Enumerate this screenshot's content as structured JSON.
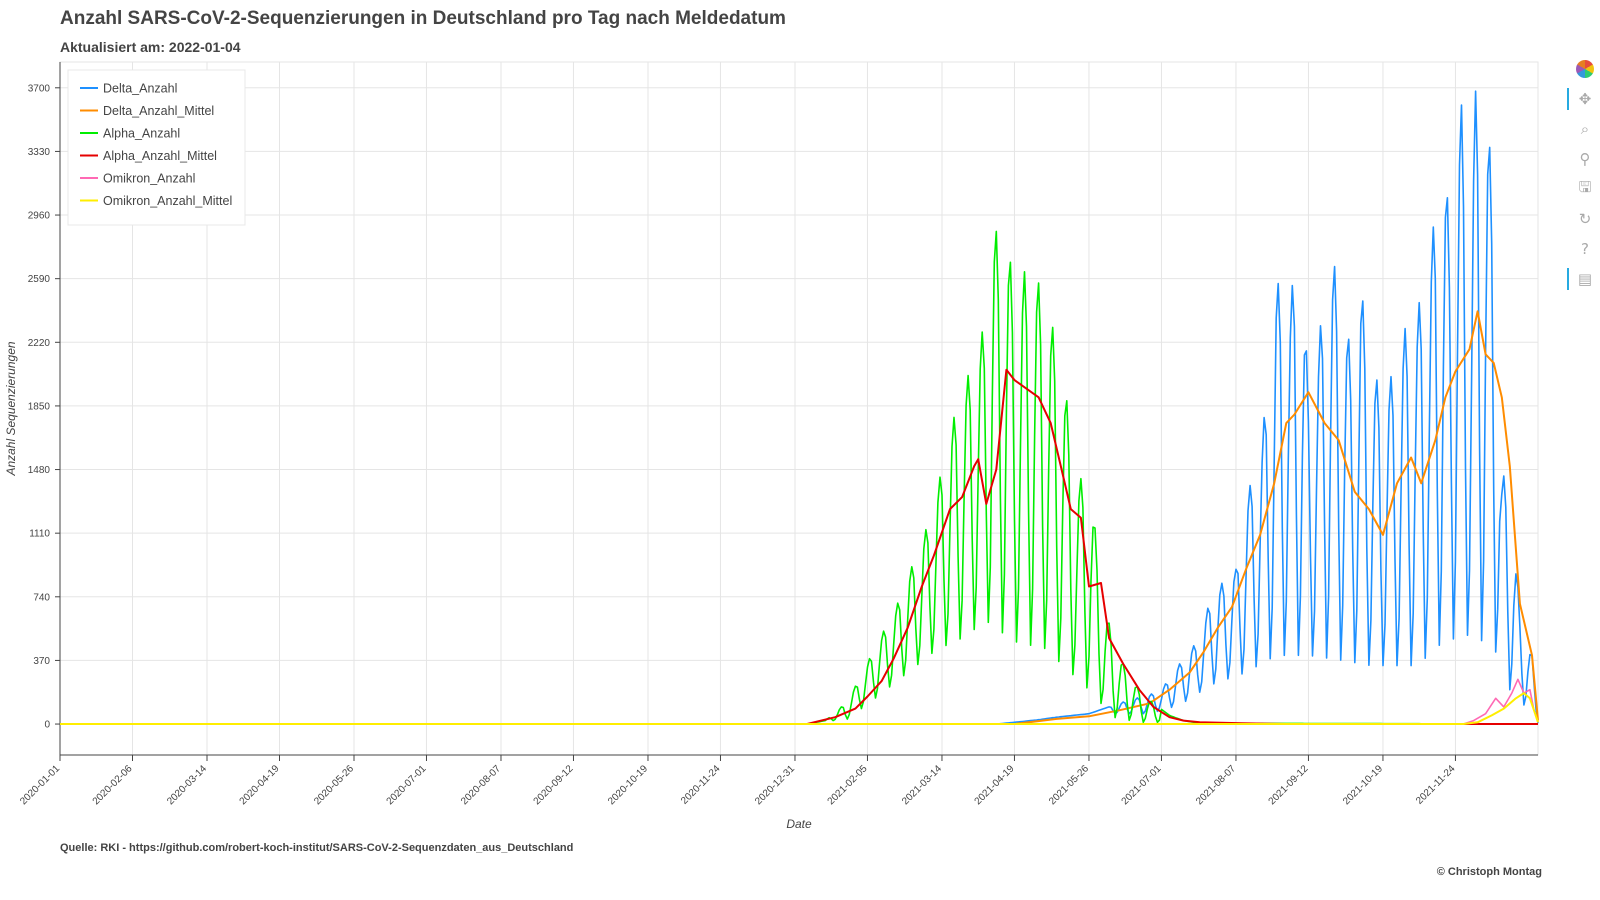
{
  "header": {
    "title": "Anzahl SARS-CoV-2-Sequenzierungen in Deutschland pro Tag nach Meldedatum",
    "subtitle": "Aktualisiert am: 2022-01-04"
  },
  "footer": {
    "source": "Quelle: RKI - https://github.com/robert-koch-institut/SARS-CoV-2-Sequenzdaten_aus_Deutschland",
    "credit": "© Christoph Montag"
  },
  "toolbar": [
    {
      "name": "bokeh-logo-icon",
      "glyph": ""
    },
    {
      "name": "pan-tool-icon",
      "glyph": "✥",
      "active": true
    },
    {
      "name": "box-zoom-tool-icon",
      "glyph": "⌕"
    },
    {
      "name": "wheel-zoom-tool-icon",
      "glyph": "⚲"
    },
    {
      "name": "save-tool-icon",
      "glyph": "🖫"
    },
    {
      "name": "reset-tool-icon",
      "glyph": "↻"
    },
    {
      "name": "help-tool-icon",
      "glyph": "?"
    },
    {
      "name": "hover-tool-icon",
      "glyph": "▤",
      "active": true
    }
  ],
  "chart_data": {
    "type": "line",
    "xlabel": "Date",
    "ylabel": "Anzahl Sequenzierungen",
    "x_range": [
      "2020-01-01",
      "2022-01-04"
    ],
    "ylim": [
      -180,
      3850
    ],
    "yticks": [
      0,
      370,
      740,
      1110,
      1480,
      1850,
      2220,
      2590,
      2960,
      3330,
      3700
    ],
    "xticks": [
      "2020-01-01",
      "2020-02-06",
      "2020-03-14",
      "2020-04-19",
      "2020-05-26",
      "2020-07-01",
      "2020-08-07",
      "2020-09-12",
      "2020-10-19",
      "2020-11-24",
      "2020-12-31",
      "2021-02-05",
      "2021-03-14",
      "2021-04-19",
      "2021-05-26",
      "2021-07-01",
      "2021-08-07",
      "2021-09-12",
      "2021-10-19",
      "2021-11-24"
    ],
    "grid": true,
    "legend_position": "top-left",
    "series": [
      {
        "name": "Delta_Anzahl",
        "color": "#1e90ff",
        "width": 1.6,
        "points": [
          [
            "2020-01-01",
            0
          ],
          [
            "2021-04-10",
            0
          ],
          [
            "2021-04-19",
            10
          ],
          [
            "2021-05-01",
            25
          ],
          [
            "2021-05-10",
            40
          ],
          [
            "2021-05-26",
            60
          ],
          [
            "2021-06-05",
            100
          ],
          [
            "2021-06-15",
            140
          ],
          [
            "2021-06-25",
            170
          ],
          [
            "2021-07-01",
            200
          ],
          [
            "2021-07-10",
            350
          ],
          [
            "2021-07-20",
            500
          ],
          [
            "2021-07-26",
            760
          ],
          [
            "2021-08-07",
            900
          ],
          [
            "2021-08-12",
            1300
          ],
          [
            "2021-08-20",
            1650
          ],
          [
            "2021-08-27",
            2580
          ],
          [
            "2021-09-03",
            2450
          ],
          [
            "2021-09-07",
            2850
          ],
          [
            "2021-09-12",
            2000
          ],
          [
            "2021-09-17",
            2200
          ],
          [
            "2021-09-22",
            2780
          ],
          [
            "2021-09-29",
            2500
          ],
          [
            "2021-10-03",
            2150
          ],
          [
            "2021-10-08",
            2550
          ],
          [
            "2021-10-13",
            2100
          ],
          [
            "2021-10-19",
            1900
          ],
          [
            "2021-10-24",
            2050
          ],
          [
            "2021-10-30",
            2300
          ],
          [
            "2021-11-05",
            2400
          ],
          [
            "2021-11-10",
            2650
          ],
          [
            "2021-11-15",
            3050
          ],
          [
            "2021-11-18",
            3380
          ],
          [
            "2021-11-21",
            2900
          ],
          [
            "2021-11-24",
            3470
          ],
          [
            "2021-11-27",
            3600
          ],
          [
            "2021-12-01",
            3000
          ],
          [
            "2021-12-04",
            3680
          ],
          [
            "2021-12-07",
            3650
          ],
          [
            "2021-12-10",
            3500
          ],
          [
            "2021-12-13",
            3060
          ],
          [
            "2021-12-17",
            1450
          ],
          [
            "2021-12-21",
            1420
          ],
          [
            "2021-12-26",
            640
          ],
          [
            "2022-01-01",
            400
          ],
          [
            "2022-01-04",
            5
          ]
        ],
        "troughs": [
          [
            "2021-06-25",
            60
          ],
          [
            "2021-07-10",
            110
          ],
          [
            "2021-07-26",
            230
          ],
          [
            "2021-08-12",
            300
          ],
          [
            "2021-08-27",
            400
          ],
          [
            "2021-09-12",
            400
          ],
          [
            "2021-09-29",
            370
          ],
          [
            "2021-10-13",
            340
          ],
          [
            "2021-10-24",
            340
          ],
          [
            "2021-11-05",
            340
          ],
          [
            "2021-11-18",
            480
          ],
          [
            "2021-12-01",
            520
          ],
          [
            "2021-12-13",
            450
          ],
          [
            "2021-12-21",
            200
          ],
          [
            "2022-01-01",
            60
          ]
        ]
      },
      {
        "name": "Delta_Anzahl_Mittel",
        "color": "#ff8c00",
        "width": 2,
        "points": [
          [
            "2020-01-01",
            0
          ],
          [
            "2021-04-19",
            0
          ],
          [
            "2021-05-10",
            30
          ],
          [
            "2021-05-26",
            45
          ],
          [
            "2021-06-10",
            80
          ],
          [
            "2021-06-25",
            120
          ],
          [
            "2021-07-05",
            200
          ],
          [
            "2021-07-15",
            300
          ],
          [
            "2021-07-22",
            420
          ],
          [
            "2021-07-29",
            560
          ],
          [
            "2021-08-05",
            680
          ],
          [
            "2021-08-12",
            900
          ],
          [
            "2021-08-19",
            1100
          ],
          [
            "2021-08-26",
            1400
          ],
          [
            "2021-09-01",
            1750
          ],
          [
            "2021-09-05",
            1800
          ],
          [
            "2021-09-12",
            1930
          ],
          [
            "2021-09-20",
            1750
          ],
          [
            "2021-09-27",
            1650
          ],
          [
            "2021-10-05",
            1350
          ],
          [
            "2021-10-12",
            1250
          ],
          [
            "2021-10-19",
            1100
          ],
          [
            "2021-10-26",
            1400
          ],
          [
            "2021-11-02",
            1550
          ],
          [
            "2021-11-07",
            1400
          ],
          [
            "2021-11-14",
            1650
          ],
          [
            "2021-11-19",
            1900
          ],
          [
            "2021-11-24",
            2050
          ],
          [
            "2021-12-01",
            2180
          ],
          [
            "2021-12-05",
            2400
          ],
          [
            "2021-12-09",
            2150
          ],
          [
            "2021-12-13",
            2100
          ],
          [
            "2021-12-17",
            1900
          ],
          [
            "2021-12-21",
            1500
          ],
          [
            "2021-12-26",
            700
          ],
          [
            "2022-01-01",
            400
          ],
          [
            "2022-01-04",
            20
          ]
        ]
      },
      {
        "name": "Alpha_Anzahl",
        "color": "#00ee00",
        "width": 1.6,
        "points": [
          [
            "2020-01-01",
            0
          ],
          [
            "2021-01-06",
            0
          ],
          [
            "2021-01-15",
            20
          ],
          [
            "2021-01-25",
            120
          ],
          [
            "2021-02-02",
            280
          ],
          [
            "2021-02-10",
            480
          ],
          [
            "2021-02-18",
            640
          ],
          [
            "2021-02-25",
            860
          ],
          [
            "2021-03-04",
            1050
          ],
          [
            "2021-03-11",
            1330
          ],
          [
            "2021-03-18",
            1700
          ],
          [
            "2021-03-24",
            1950
          ],
          [
            "2021-03-31",
            2130
          ],
          [
            "2021-04-05",
            2380
          ],
          [
            "2021-04-08",
            2980
          ],
          [
            "2021-04-12",
            2750
          ],
          [
            "2021-04-15",
            2870
          ],
          [
            "2021-04-19",
            2500
          ],
          [
            "2021-04-24",
            2630
          ],
          [
            "2021-04-29",
            2660
          ],
          [
            "2021-05-04",
            2420
          ],
          [
            "2021-05-10",
            2250
          ],
          [
            "2021-05-15",
            1880
          ],
          [
            "2021-05-20",
            1400
          ],
          [
            "2021-05-26",
            1480
          ],
          [
            "2021-06-01",
            800
          ],
          [
            "2021-06-07",
            480
          ],
          [
            "2021-06-14",
            300
          ],
          [
            "2021-06-20",
            200
          ],
          [
            "2021-06-27",
            120
          ],
          [
            "2021-07-05",
            50
          ],
          [
            "2021-07-12",
            20
          ],
          [
            "2021-07-20",
            5
          ],
          [
            "2022-01-04",
            0
          ]
        ],
        "troughs": [
          [
            "2021-01-25",
            20
          ],
          [
            "2021-02-10",
            160
          ],
          [
            "2021-02-25",
            300
          ],
          [
            "2021-03-11",
            430
          ],
          [
            "2021-03-24",
            500
          ],
          [
            "2021-04-05",
            600
          ],
          [
            "2021-04-19",
            480
          ],
          [
            "2021-05-04",
            440
          ],
          [
            "2021-05-15",
            320
          ],
          [
            "2021-05-26",
            200
          ],
          [
            "2021-06-07",
            40
          ],
          [
            "2021-06-20",
            10
          ]
        ]
      },
      {
        "name": "Alpha_Anzahl_Mittel",
        "color": "#e60000",
        "width": 2,
        "points": [
          [
            "2020-01-01",
            0
          ],
          [
            "2021-01-06",
            0
          ],
          [
            "2021-01-20",
            40
          ],
          [
            "2021-01-30",
            90
          ],
          [
            "2021-02-05",
            160
          ],
          [
            "2021-02-12",
            250
          ],
          [
            "2021-02-18",
            380
          ],
          [
            "2021-02-25",
            560
          ],
          [
            "2021-03-04",
            800
          ],
          [
            "2021-03-10",
            980
          ],
          [
            "2021-03-18",
            1250
          ],
          [
            "2021-03-24",
            1320
          ],
          [
            "2021-03-30",
            1500
          ],
          [
            "2021-04-01",
            1540
          ],
          [
            "2021-04-05",
            1280
          ],
          [
            "2021-04-10",
            1480
          ],
          [
            "2021-04-15",
            2060
          ],
          [
            "2021-04-19",
            2000
          ],
          [
            "2021-04-25",
            1950
          ],
          [
            "2021-05-01",
            1900
          ],
          [
            "2021-05-07",
            1750
          ],
          [
            "2021-05-12",
            1500
          ],
          [
            "2021-05-17",
            1250
          ],
          [
            "2021-05-22",
            1200
          ],
          [
            "2021-05-26",
            800
          ],
          [
            "2021-06-01",
            820
          ],
          [
            "2021-06-05",
            500
          ],
          [
            "2021-06-12",
            350
          ],
          [
            "2021-06-20",
            200
          ],
          [
            "2021-06-27",
            100
          ],
          [
            "2021-07-05",
            40
          ],
          [
            "2021-07-12",
            20
          ],
          [
            "2021-07-20",
            10
          ],
          [
            "2021-08-10",
            5
          ],
          [
            "2021-09-01",
            0
          ],
          [
            "2022-01-04",
            0
          ]
        ]
      },
      {
        "name": "Omikron_Anzahl",
        "color": "#ff69b4",
        "width": 1.6,
        "points": [
          [
            "2020-01-01",
            0
          ],
          [
            "2021-11-28",
            0
          ],
          [
            "2021-12-03",
            20
          ],
          [
            "2021-12-09",
            60
          ],
          [
            "2021-12-14",
            150
          ],
          [
            "2021-12-18",
            100
          ],
          [
            "2021-12-22",
            180
          ],
          [
            "2021-12-25",
            260
          ],
          [
            "2021-12-28",
            180
          ],
          [
            "2021-12-31",
            200
          ],
          [
            "2022-01-02",
            80
          ],
          [
            "2022-01-04",
            10
          ]
        ]
      },
      {
        "name": "Omikron_Anzahl_Mittel",
        "color": "#ffee00",
        "width": 2,
        "points": [
          [
            "2020-01-01",
            0
          ],
          [
            "2021-11-28",
            0
          ],
          [
            "2021-12-05",
            10
          ],
          [
            "2021-12-12",
            50
          ],
          [
            "2021-12-18",
            90
          ],
          [
            "2021-12-24",
            150
          ],
          [
            "2021-12-28",
            180
          ],
          [
            "2021-12-31",
            150
          ],
          [
            "2022-01-02",
            80
          ],
          [
            "2022-01-04",
            10
          ]
        ]
      }
    ]
  }
}
